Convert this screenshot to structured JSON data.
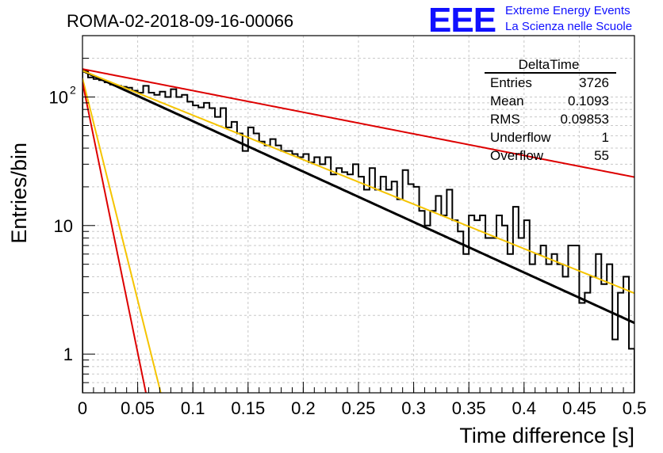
{
  "header": {
    "title": "ROMA-02-2018-09-16-00066",
    "logo": "EEE",
    "logo_line1": "Extreme Energy Events",
    "logo_line2": "La Scienza nelle Scuole"
  },
  "stats_box": {
    "title": "DeltaTime",
    "rows": [
      {
        "label": "Entries",
        "value": "3726"
      },
      {
        "label": "Mean",
        "value": "0.1093"
      },
      {
        "label": "RMS",
        "value": "0.09853"
      },
      {
        "label": "Underflow",
        "value": "1"
      },
      {
        "label": "Overflow",
        "value": "55"
      }
    ]
  },
  "colors": {
    "histogram": "#000000",
    "fit_black": "#000000",
    "fit_yellow": "#f5c400",
    "fit_red": "#dd0000",
    "grid": "#c8c8c8"
  },
  "chart_data": {
    "type": "histogram",
    "xlabel": "Time difference [s]",
    "ylabel": "Entries/bin",
    "xlim": [
      0,
      0.5
    ],
    "ylim": [
      0.5,
      300
    ],
    "yscale": "log",
    "grid": true,
    "x_ticks": [
      "0",
      "0.05",
      "0.1",
      "0.15",
      "0.2",
      "0.25",
      "0.3",
      "0.35",
      "0.4",
      "0.45",
      "0.5"
    ],
    "y_ticks": [
      {
        "value": 1,
        "base": "1",
        "exp": ""
      },
      {
        "value": 10,
        "base": "10",
        "exp": ""
      },
      {
        "value": 100,
        "base": "10",
        "exp": "2"
      }
    ],
    "bin_width": 0.005,
    "bin_values": [
      160,
      142,
      138,
      135,
      130,
      125,
      122,
      120,
      118,
      112,
      108,
      122,
      108,
      104,
      110,
      100,
      115,
      100,
      104,
      92,
      86,
      83,
      90,
      82,
      70,
      82,
      58,
      64,
      52,
      38,
      58,
      52,
      45,
      42,
      47,
      42,
      38,
      38,
      36,
      34,
      36,
      31,
      34,
      30,
      34,
      25,
      28,
      26,
      25,
      30,
      24,
      19,
      28,
      19,
      24,
      19,
      22,
      16,
      27,
      21,
      20,
      13,
      10,
      13,
      17,
      12,
      19,
      11,
      9,
      6,
      12,
      11,
      12,
      8,
      8,
      12,
      10,
      6,
      14,
      8,
      11,
      5,
      6,
      7,
      5,
      6,
      5,
      4,
      7,
      7,
      2.5,
      3,
      4,
      6,
      3.5,
      5,
      1.3,
      3,
      4,
      1.1
    ],
    "series": [
      {
        "name": "",
        "fit": "exponential",
        "A": 160,
        "tau": 0.1107,
        "color": "#000000"
      },
      {
        "name": "",
        "fit": "exponential",
        "A": 160,
        "tau": 0.1255,
        "color": "#f5c400"
      },
      {
        "name": "",
        "fit": "exponential",
        "A": 165,
        "tau": 0.2583,
        "color": "#dd0000"
      },
      {
        "name": "",
        "fit": "exponential",
        "A": 140,
        "tau": 0.01258,
        "color": "#f5c400"
      },
      {
        "name": "",
        "fit": "exponential",
        "A": 130,
        "tau": 0.01033,
        "color": "#dd0000"
      }
    ]
  }
}
